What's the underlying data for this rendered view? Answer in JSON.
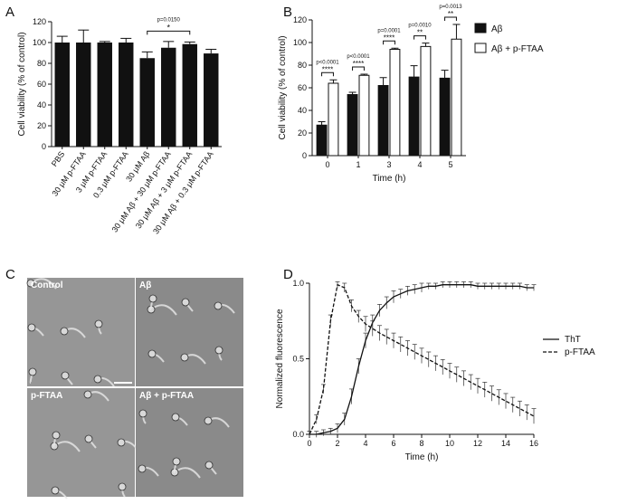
{
  "panel_letters": [
    "A",
    "B",
    "C",
    "D"
  ],
  "micrographs": {
    "labels": [
      "Control",
      "Aβ",
      "p-FTAA",
      "Aβ + p-FTAA"
    ]
  },
  "chart_data": [
    {
      "type": "bar",
      "ylabel": "Cell viability (% of control)",
      "categories": [
        "PBS",
        "30 μM p-FTAA",
        "3 μM p-FTAA",
        "0.3 μM p-FTAA",
        "30 μM Aβ",
        "30 μM Aβ + 30 μM p-FTAA",
        "30 μM Aβ + 3 μM p-FTAA",
        "30 μM Aβ + 0.3 μM p-FTAA"
      ],
      "values": [
        100,
        100,
        100,
        100,
        85,
        95,
        98.5,
        89.5
      ],
      "errors": [
        6,
        12,
        1,
        4,
        6,
        6,
        2,
        4
      ],
      "color": "#111111",
      "ylim": [
        0,
        120
      ],
      "yticks": [
        0,
        20,
        40,
        60,
        80,
        100,
        120
      ],
      "annotations": [
        {
          "p": "p=0.0150",
          "stars": "*"
        }
      ]
    },
    {
      "type": "bar",
      "ylabel": "Cell viability (% of control)",
      "xlabel": "Time  (h)",
      "categories": [
        "0",
        "1",
        "3",
        "4",
        "5"
      ],
      "series": [
        {
          "name": "Aβ",
          "color": "#111111",
          "values": [
            27,
            54,
            62,
            69.5,
            68.5
          ],
          "errors": [
            3,
            2,
            7,
            10,
            7
          ]
        },
        {
          "name": "Aβ + p-FTAA",
          "color": "#ffffff",
          "values": [
            64,
            71,
            94,
            96.5,
            103
          ],
          "errors": [
            3,
            1,
            1,
            3,
            13
          ]
        }
      ],
      "ylim": [
        0,
        120
      ],
      "yticks": [
        0,
        20,
        40,
        60,
        80,
        100,
        120
      ],
      "legend": "right",
      "annotations": [
        {
          "p": "p<0.0001",
          "stars": "****"
        },
        {
          "p": "p<0.0001",
          "stars": "****"
        },
        {
          "p": "p=0.0001",
          "stars": "****"
        },
        {
          "p": "p=0.0010",
          "stars": "**"
        },
        {
          "p": "p=0.0013",
          "stars": "**"
        }
      ]
    },
    {
      "type": "line",
      "ylabel": "Normalized fluorescence",
      "xlabel": "Time (h)",
      "x": [
        0,
        0.5,
        1,
        1.5,
        2,
        2.5,
        3,
        3.5,
        4,
        4.5,
        5,
        5.5,
        6,
        6.5,
        7,
        7.5,
        8,
        8.5,
        9,
        9.5,
        10,
        10.5,
        11,
        11.5,
        12,
        12.5,
        13,
        13.5,
        14,
        14.5,
        15,
        15.5,
        16
      ],
      "series": [
        {
          "name": "ThT",
          "color": "#111111",
          "dash": false,
          "values": [
            0,
            0,
            0.01,
            0.02,
            0.04,
            0.1,
            0.25,
            0.45,
            0.62,
            0.74,
            0.82,
            0.87,
            0.91,
            0.93,
            0.95,
            0.96,
            0.97,
            0.98,
            0.98,
            0.99,
            0.99,
            0.99,
            0.99,
            0.99,
            0.98,
            0.98,
            0.98,
            0.98,
            0.98,
            0.98,
            0.98,
            0.97,
            0.97
          ],
          "errors": [
            0.02,
            0.02,
            0.02,
            0.02,
            0.03,
            0.04,
            0.05,
            0.05,
            0.05,
            0.05,
            0.04,
            0.04,
            0.04,
            0.03,
            0.03,
            0.03,
            0.03,
            0.02,
            0.02,
            0.02,
            0.02,
            0.02,
            0.02,
            0.02,
            0.02,
            0.02,
            0.02,
            0.02,
            0.02,
            0.02,
            0.02,
            0.02,
            0.02
          ]
        },
        {
          "name": "p-FTAA",
          "color": "#111111",
          "dash": true,
          "values": [
            0,
            0.1,
            0.3,
            0.75,
            0.99,
            0.97,
            0.85,
            0.78,
            0.73,
            0.7,
            0.67,
            0.645,
            0.62,
            0.595,
            0.57,
            0.545,
            0.52,
            0.495,
            0.47,
            0.445,
            0.42,
            0.395,
            0.37,
            0.345,
            0.32,
            0.295,
            0.27,
            0.245,
            0.22,
            0.195,
            0.17,
            0.145,
            0.12
          ],
          "errors": [
            0.02,
            0.03,
            0.03,
            0.04,
            0.02,
            0.03,
            0.04,
            0.04,
            0.05,
            0.05,
            0.05,
            0.05,
            0.05,
            0.05,
            0.05,
            0.05,
            0.05,
            0.05,
            0.05,
            0.05,
            0.05,
            0.05,
            0.05,
            0.05,
            0.05,
            0.05,
            0.05,
            0.05,
            0.05,
            0.05,
            0.05,
            0.05,
            0.05
          ]
        }
      ],
      "xlim": [
        0,
        16
      ],
      "xticks": [
        0,
        2,
        4,
        6,
        8,
        10,
        12,
        14,
        16
      ],
      "ylim": [
        0,
        1
      ],
      "yticks": [
        {
          "value": 0,
          "label": "0.0"
        },
        {
          "value": 0.5,
          "label": "0.5"
        },
        {
          "value": 1,
          "label": "1.0"
        }
      ],
      "legend": "right"
    }
  ]
}
